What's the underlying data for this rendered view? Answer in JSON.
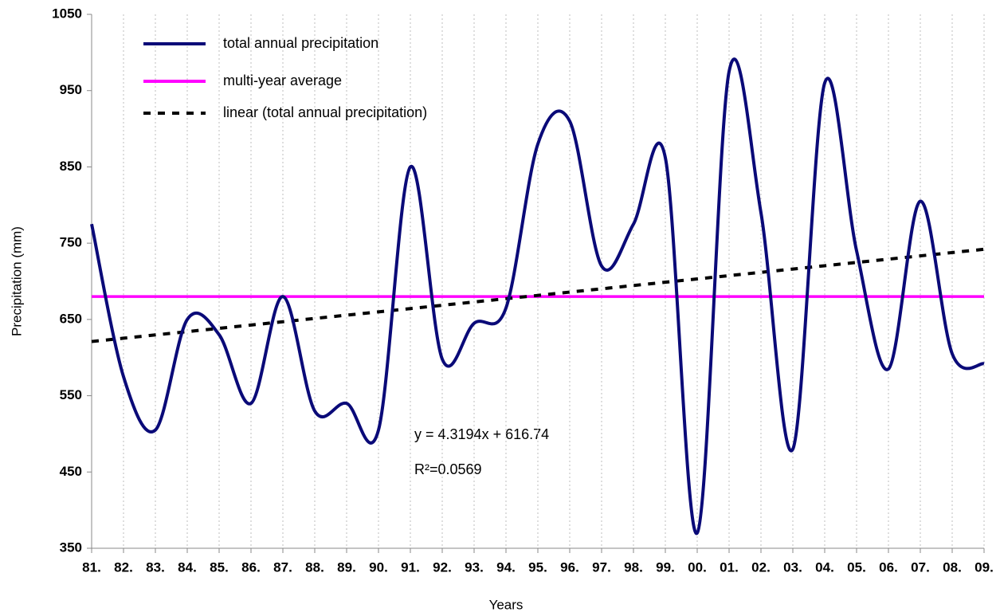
{
  "chart_data": {
    "type": "line",
    "x_label": "Years",
    "y_label": "Precipitation (mm)",
    "categories": [
      "81.",
      "82.",
      "83.",
      "84.",
      "85.",
      "86.",
      "87.",
      "88.",
      "89.",
      "90.",
      "91.",
      "92.",
      "93.",
      "94.",
      "95.",
      "96.",
      "97.",
      "98.",
      "99.",
      "00.",
      "01.",
      "02.",
      "03.",
      "04.",
      "05.",
      "06.",
      "07.",
      "08.",
      "09."
    ],
    "series": [
      {
        "name": "total annual precipitation",
        "color": "#0a0a78",
        "style": "smooth",
        "values": [
          775,
          575,
          505,
          650,
          630,
          540,
          680,
          530,
          540,
          505,
          850,
          598,
          645,
          665,
          880,
          910,
          720,
          775,
          862,
          370,
          975,
          790,
          480,
          960,
          740,
          585,
          805,
          605,
          592
        ]
      },
      {
        "name": "multi-year average",
        "color": "#ff00ff",
        "style": "solid",
        "values": [
          680,
          680,
          680,
          680,
          680,
          680,
          680,
          680,
          680,
          680,
          680,
          680,
          680,
          680,
          680,
          680,
          680,
          680,
          680,
          680,
          680,
          680,
          680,
          680,
          680,
          680,
          680,
          680,
          680
        ]
      },
      {
        "name": "linear (total annual precipitation)",
        "color": "#000000",
        "style": "dashed",
        "values": [
          621.06,
          625.38,
          629.7,
          634.02,
          638.34,
          642.66,
          646.98,
          651.3,
          655.61,
          659.93,
          664.25,
          668.57,
          672.89,
          677.21,
          681.53,
          685.85,
          690.17,
          694.49,
          698.81,
          703.13,
          707.45,
          711.77,
          716.09,
          720.41,
          724.73,
          729.04,
          733.36,
          737.68,
          742.0
        ]
      }
    ],
    "annotations": [
      "y = 4.3194x + 616.74",
      "R²=0.0569"
    ],
    "ylim": [
      350,
      1050
    ],
    "yticks": [
      350,
      450,
      550,
      650,
      750,
      850,
      950,
      1050
    ],
    "grid": true,
    "legend": "upper left"
  }
}
